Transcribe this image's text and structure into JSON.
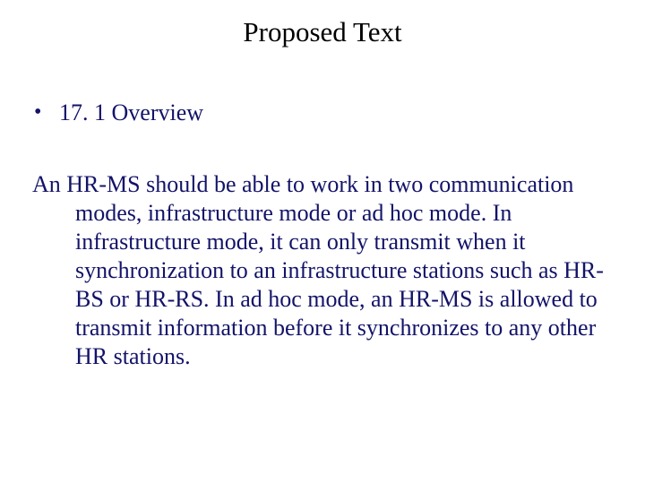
{
  "title": "Proposed Text",
  "bullet": {
    "marker": "•",
    "text": "17. 1 Overview"
  },
  "paragraph": "An HR-MS should be able to work in two communication modes, infrastructure mode or ad hoc mode.  In infrastructure mode, it can only transmit when it synchronization to an infrastructure stations such as HR-BS or HR-RS. In ad hoc mode, an HR-MS is allowed to transmit information before it synchronizes to any other HR stations.",
  "colors": {
    "title": "#000000",
    "body": "#131369",
    "background": "#ffffff"
  },
  "fonts": {
    "family": "Times New Roman",
    "title_size_pt": 31,
    "body_size_pt": 26
  }
}
